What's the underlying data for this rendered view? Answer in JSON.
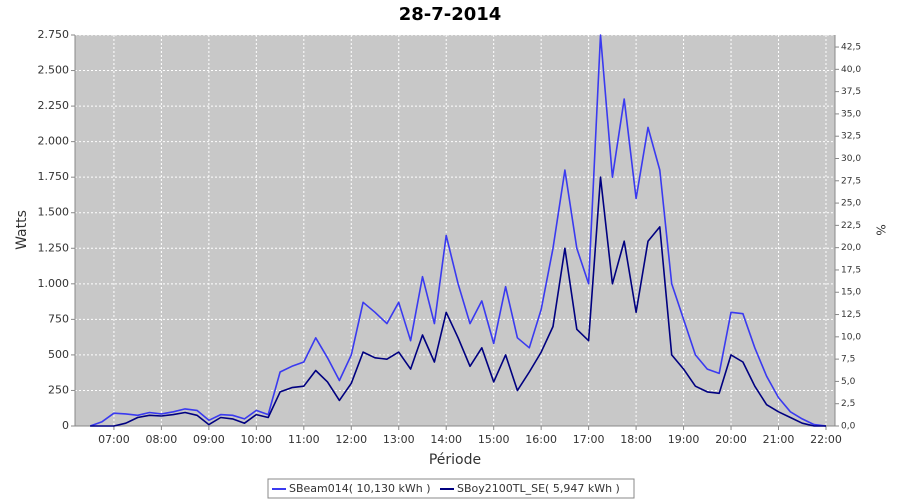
{
  "chart_data": {
    "type": "line",
    "title": "28-7-2014",
    "xlabel": "Période",
    "ylabel": "Watts",
    "y2label": "%",
    "grid": true,
    "legend": "bottom",
    "x": [
      6.5,
      6.75,
      7,
      7.25,
      7.5,
      7.75,
      8,
      8.25,
      8.5,
      8.75,
      9,
      9.25,
      9.5,
      9.75,
      10,
      10.25,
      10.5,
      10.75,
      11,
      11.25,
      11.5,
      11.75,
      12,
      12.25,
      12.5,
      12.75,
      13,
      13.25,
      13.5,
      13.75,
      14,
      14.25,
      14.5,
      14.75,
      15,
      15.25,
      15.5,
      15.75,
      16,
      16.25,
      16.5,
      16.75,
      17,
      17.25,
      17.5,
      17.75,
      18,
      18.25,
      18.5,
      18.75,
      19,
      19.25,
      19.5,
      19.75,
      20,
      20.25,
      20.5,
      20.75,
      21,
      21.25,
      21.5,
      21.75,
      22
    ],
    "series": [
      {
        "name": "SBeam014( 10,130 kWh )",
        "color": "#3a3af0",
        "values": [
          0,
          30,
          90,
          85,
          75,
          95,
          85,
          100,
          120,
          110,
          40,
          80,
          75,
          50,
          110,
          80,
          380,
          420,
          450,
          620,
          480,
          320,
          500,
          870,
          800,
          720,
          870,
          600,
          1050,
          720,
          1340,
          1000,
          720,
          880,
          580,
          980,
          620,
          550,
          820,
          1250,
          1800,
          1250,
          1000,
          2750,
          1750,
          2300,
          1600,
          2100,
          1800,
          1000,
          750,
          500,
          400,
          370,
          800,
          790,
          550,
          350,
          200,
          100,
          50,
          10,
          0
        ]
      },
      {
        "name": "SBoy2100TL_SE( 5,947 kWh )",
        "color": "#000080",
        "values": [
          0,
          0,
          0,
          20,
          60,
          75,
          70,
          80,
          95,
          75,
          10,
          60,
          50,
          20,
          80,
          60,
          240,
          270,
          280,
          390,
          310,
          180,
          300,
          520,
          480,
          470,
          520,
          400,
          640,
          450,
          800,
          620,
          420,
          550,
          310,
          500,
          250,
          380,
          520,
          700,
          1250,
          680,
          600,
          1750,
          1000,
          1300,
          800,
          1300,
          1400,
          500,
          400,
          280,
          240,
          230,
          500,
          450,
          280,
          150,
          100,
          60,
          20,
          0,
          0
        ]
      }
    ],
    "xlim": [
      6.18,
      22.19
    ],
    "xticks": [
      {
        "value": 7,
        "label": "07:00"
      },
      {
        "value": 8,
        "label": "08:00"
      },
      {
        "value": 9,
        "label": "09:00"
      },
      {
        "value": 10,
        "label": "10:00"
      },
      {
        "value": 11,
        "label": "11:00"
      },
      {
        "value": 12,
        "label": "12:00"
      },
      {
        "value": 13,
        "label": "13:00"
      },
      {
        "value": 14,
        "label": "14:00"
      },
      {
        "value": 15,
        "label": "15:00"
      },
      {
        "value": 16,
        "label": "16:00"
      },
      {
        "value": 17,
        "label": "17:00"
      },
      {
        "value": 18,
        "label": "18:00"
      },
      {
        "value": 19,
        "label": "19:00"
      },
      {
        "value": 20,
        "label": "20:00"
      },
      {
        "value": 21,
        "label": "21:00"
      },
      {
        "value": 22,
        "label": "22:00"
      }
    ],
    "ylim": [
      0,
      2750
    ],
    "yticks": [
      0,
      250,
      500,
      750,
      {
        "value": 1000,
        "label": "1.000"
      },
      {
        "value": 1250,
        "label": "1.250"
      },
      {
        "value": 1500,
        "label": "1.500"
      },
      {
        "value": 1750,
        "label": "1.750"
      },
      {
        "value": 2000,
        "label": "2.000"
      },
      {
        "value": 2250,
        "label": "2.250"
      },
      {
        "value": 2500,
        "label": "2.500"
      },
      {
        "value": 2750,
        "label": "2.750"
      }
    ],
    "y2lim": [
      0,
      43.85
    ],
    "y2ticks": [
      {
        "value": 0,
        "label": "0,0"
      },
      {
        "value": 2.5,
        "label": "2,5"
      },
      {
        "value": 5,
        "label": "5,0"
      },
      {
        "value": 7.5,
        "label": "7,5"
      },
      {
        "value": 10,
        "label": "10,0"
      },
      {
        "value": 12.5,
        "label": "12,5"
      },
      {
        "value": 15,
        "label": "15,0"
      },
      {
        "value": 17.5,
        "label": "17,5"
      },
      {
        "value": 20,
        "label": "20,0"
      },
      {
        "value": 22.5,
        "label": "22,5"
      },
      {
        "value": 25,
        "label": "25,0"
      },
      {
        "value": 27.5,
        "label": "27,5"
      },
      {
        "value": 30,
        "label": "30,0"
      },
      {
        "value": 32.5,
        "label": "32,5"
      },
      {
        "value": 35,
        "label": "35,0"
      },
      {
        "value": 37.5,
        "label": "37,5"
      },
      {
        "value": 40,
        "label": "40,0"
      },
      {
        "value": 42.5,
        "label": "42,5"
      }
    ]
  }
}
